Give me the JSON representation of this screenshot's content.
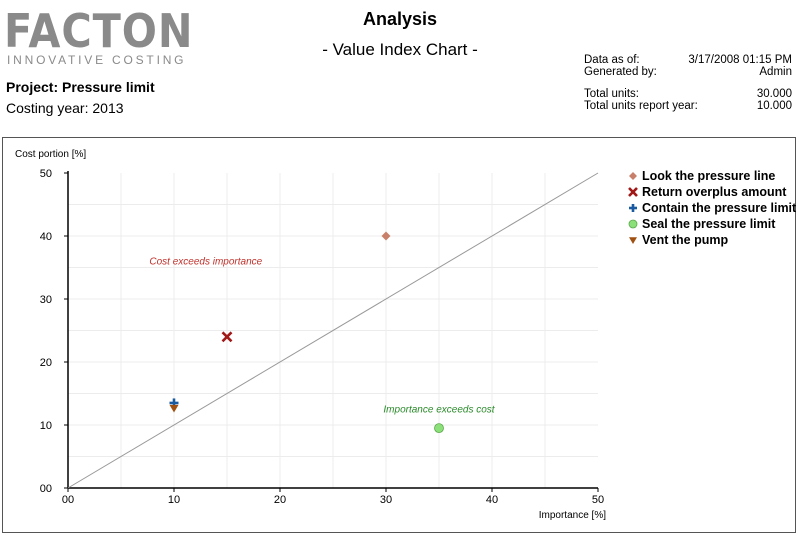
{
  "header": {
    "logo_text": "FACTON",
    "logo_tagline": "INNOVATIVE COSTING",
    "title": "Analysis",
    "subtitle": "- Value Index Chart -",
    "project": "Project: Pressure limit",
    "costing_year": "Costing year: 2013"
  },
  "meta": {
    "data_as_of_label": "Data as of:",
    "data_as_of_value": "3/17/2008 01:15 PM",
    "generated_by_label": "Generated by:",
    "generated_by_value": "Admin",
    "total_units_label": "Total units:",
    "total_units_value": "30.000",
    "total_units_report_year_label": "Total units report year:",
    "total_units_report_year_value": "10.000"
  },
  "colors": {
    "look": "#c8806a",
    "return": "#a01818",
    "contain": "#1a5aa0",
    "seal": "#8ce07a",
    "vent": "#a05010",
    "annotation_cost": "#c0302a",
    "annotation_importance": "#2a8a2a"
  },
  "chart_data": {
    "type": "scatter",
    "xlabel": "Importance [%]",
    "ylabel": "Cost portion [%]",
    "xlim": [
      0,
      50
    ],
    "ylim": [
      0,
      50
    ],
    "x_ticks": [
      0,
      10,
      20,
      30,
      40,
      50
    ],
    "y_ticks": [
      0,
      10,
      20,
      30,
      40,
      50
    ],
    "x_tick_labels": [
      "00",
      "10",
      "20",
      "30",
      "40",
      "50"
    ],
    "y_tick_labels": [
      "00",
      "10",
      "20",
      "30",
      "40",
      "50"
    ],
    "grid": true,
    "reference_line": {
      "from": [
        0,
        0
      ],
      "to": [
        50,
        50
      ]
    },
    "series": [
      {
        "name": "Look the pressure line",
        "marker": "diamond",
        "color_key": "look",
        "x": 30,
        "y": 40
      },
      {
        "name": "Return overplus amount",
        "marker": "x",
        "color_key": "return",
        "x": 15,
        "y": 24
      },
      {
        "name": "Contain the pressure limit",
        "marker": "plus",
        "color_key": "contain",
        "x": 10,
        "y": 13.5
      },
      {
        "name": "Seal the pressure limit",
        "marker": "circle",
        "color_key": "seal",
        "x": 35,
        "y": 9.5
      },
      {
        "name": "Vent the pump",
        "marker": "triangle-down",
        "color_key": "vent",
        "x": 10,
        "y": 12.7
      }
    ],
    "annotations": [
      {
        "text": "Cost exceeds importance",
        "x": 13,
        "y": 35.5,
        "color_key": "annotation_cost"
      },
      {
        "text": "Importance exceeds cost",
        "x": 35,
        "y": 12,
        "color_key": "annotation_importance"
      }
    ],
    "legend_position": "right"
  }
}
